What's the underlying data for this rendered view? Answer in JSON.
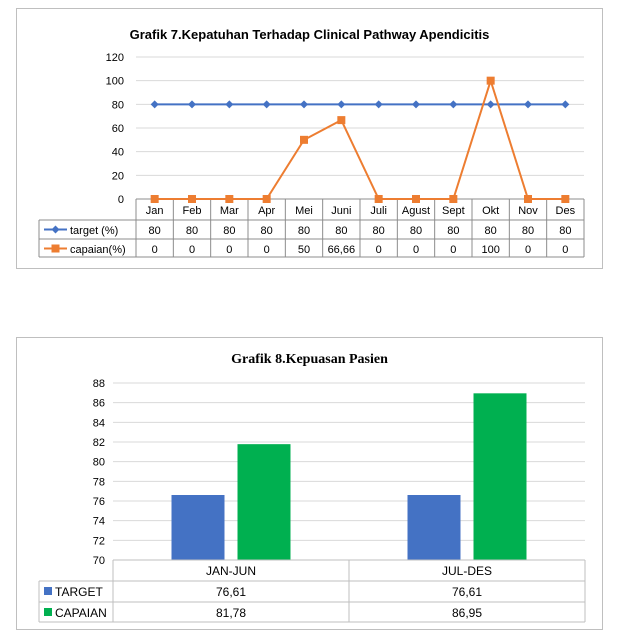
{
  "chart_data": [
    {
      "type": "line",
      "title": "Grafik 7.Kepatuhan Terhadap Clinical Pathway Apendicitis",
      "categories": [
        "Jan",
        "Feb",
        "Mar",
        "Apr",
        "Mei",
        "Juni",
        "Juli",
        "Agust",
        "Sept",
        "Okt",
        "Nov",
        "Des"
      ],
      "series": [
        {
          "name": "target (%)",
          "values": [
            80,
            80,
            80,
            80,
            80,
            80,
            80,
            80,
            80,
            80,
            80,
            80
          ],
          "labels": [
            "80",
            "80",
            "80",
            "80",
            "80",
            "80",
            "80",
            "80",
            "80",
            "80",
            "80",
            "80"
          ],
          "color": "#4472c4",
          "marker": "diamond"
        },
        {
          "name": "capaian(%)",
          "values": [
            0,
            0,
            0,
            0,
            50,
            66.66,
            0,
            0,
            0,
            100,
            0,
            0
          ],
          "labels": [
            "0",
            "0",
            "0",
            "0",
            "50",
            "66,66",
            "0",
            "0",
            "0",
            "100",
            "0",
            "0"
          ],
          "color": "#ed7d31",
          "marker": "square"
        }
      ],
      "yticks": [
        "0",
        "20",
        "40",
        "60",
        "80",
        "100",
        "120"
      ],
      "ylim": [
        0,
        120
      ],
      "grid": true,
      "legend": "data-table"
    },
    {
      "type": "bar",
      "title": "Grafik 8.Kepuasan Pasien",
      "categories": [
        "JAN-JUN",
        "JUL-DES"
      ],
      "series": [
        {
          "name": "TARGET",
          "values": [
            76.61,
            76.61
          ],
          "labels": [
            "76,61",
            "76,61"
          ],
          "color": "#4472c4"
        },
        {
          "name": "CAPAIAN",
          "values": [
            81.78,
            86.95
          ],
          "labels": [
            "81,78",
            "86,95"
          ],
          "color": "#00b050"
        }
      ],
      "yticks": [
        "70",
        "72",
        "74",
        "76",
        "78",
        "80",
        "82",
        "84",
        "86",
        "88"
      ],
      "ylim": [
        70,
        88
      ],
      "grid": true,
      "legend": "data-table"
    }
  ]
}
